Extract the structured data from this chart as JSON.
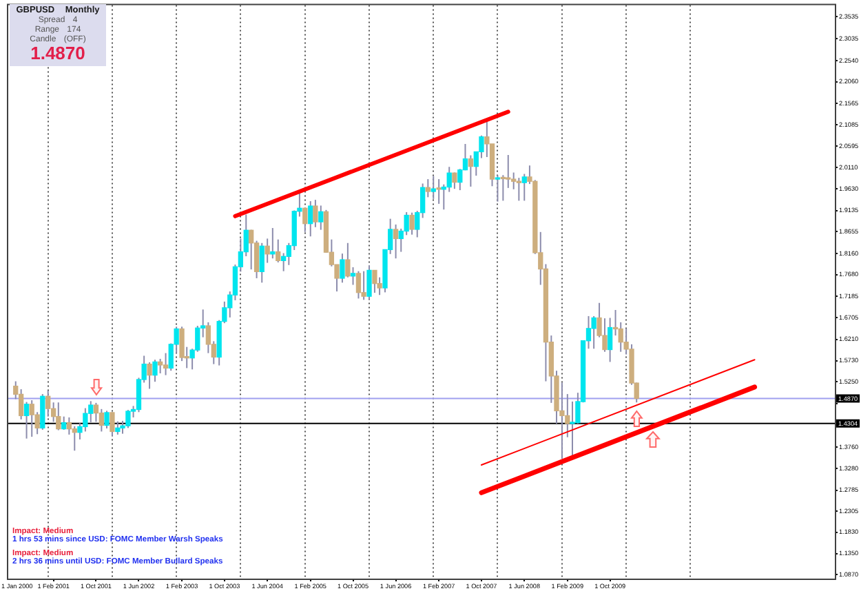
{
  "chart_data": {
    "type": "candlestick",
    "title": "GBPUSD Monthly",
    "x": [
      "2000-07",
      "2000-08",
      "2000-09",
      "2000-10",
      "2000-11",
      "2000-12",
      "2001-01",
      "2001-02",
      "2001-03",
      "2001-04",
      "2001-05",
      "2001-06",
      "2001-07",
      "2001-08",
      "2001-09",
      "2001-10",
      "2001-11",
      "2001-12",
      "2002-01",
      "2002-02",
      "2002-03",
      "2002-04",
      "2002-05",
      "2002-06",
      "2002-07",
      "2002-08",
      "2002-09",
      "2002-10",
      "2002-11",
      "2002-12",
      "2003-01",
      "2003-02",
      "2003-03",
      "2003-04",
      "2003-05",
      "2003-06",
      "2003-07",
      "2003-08",
      "2003-09",
      "2003-10",
      "2003-11",
      "2003-12",
      "2004-01",
      "2004-02",
      "2004-03",
      "2004-04",
      "2004-05",
      "2004-06",
      "2004-07",
      "2004-08",
      "2004-09",
      "2004-10",
      "2004-11",
      "2004-12",
      "2005-01",
      "2005-02",
      "2005-03",
      "2005-04",
      "2005-05",
      "2005-06",
      "2005-07",
      "2005-08",
      "2005-09",
      "2005-10",
      "2005-11",
      "2005-12",
      "2006-01",
      "2006-02",
      "2006-03",
      "2006-04",
      "2006-05",
      "2006-06",
      "2006-07",
      "2006-08",
      "2006-09",
      "2006-10",
      "2006-11",
      "2006-12",
      "2007-01",
      "2007-02",
      "2007-03",
      "2007-04",
      "2007-05",
      "2007-06",
      "2007-07",
      "2007-08",
      "2007-09",
      "2007-10",
      "2007-11",
      "2007-12",
      "2008-01",
      "2008-02",
      "2008-03",
      "2008-04",
      "2008-05",
      "2008-06",
      "2008-07",
      "2008-08",
      "2008-09",
      "2008-10",
      "2008-11",
      "2008-12",
      "2009-01",
      "2009-02",
      "2009-03",
      "2009-04",
      "2009-05",
      "2009-06",
      "2009-07",
      "2009-08",
      "2009-09",
      "2009-10",
      "2009-11",
      "2009-12",
      "2010-01",
      "2010-02",
      "2010-03"
    ],
    "ohlc": [
      [
        1.515,
        1.526,
        1.4855,
        1.4965
      ],
      [
        1.4965,
        1.508,
        1.4395,
        1.448
      ],
      [
        1.448,
        1.479,
        1.396,
        1.474
      ],
      [
        1.474,
        1.483,
        1.4,
        1.45
      ],
      [
        1.45,
        1.456,
        1.406,
        1.42
      ],
      [
        1.42,
        1.497,
        1.416,
        1.492
      ],
      [
        1.492,
        1.505,
        1.446,
        1.464
      ],
      [
        1.464,
        1.478,
        1.434,
        1.446
      ],
      [
        1.446,
        1.478,
        1.415,
        1.418
      ],
      [
        1.418,
        1.446,
        1.416,
        1.432
      ],
      [
        1.432,
        1.444,
        1.405,
        1.418
      ],
      [
        1.418,
        1.424,
        1.3685,
        1.41
      ],
      [
        1.41,
        1.431,
        1.394,
        1.423
      ],
      [
        1.423,
        1.465,
        1.412,
        1.453
      ],
      [
        1.453,
        1.481,
        1.433,
        1.472
      ],
      [
        1.472,
        1.477,
        1.434,
        1.454
      ],
      [
        1.454,
        1.463,
        1.412,
        1.426
      ],
      [
        1.426,
        1.459,
        1.419,
        1.455
      ],
      [
        1.455,
        1.456,
        1.402,
        1.412
      ],
      [
        1.412,
        1.435,
        1.405,
        1.42
      ],
      [
        1.42,
        1.436,
        1.407,
        1.425
      ],
      [
        1.425,
        1.461,
        1.42,
        1.458
      ],
      [
        1.458,
        1.47,
        1.444,
        1.462
      ],
      [
        1.462,
        1.534,
        1.456,
        1.53
      ],
      [
        1.53,
        1.584,
        1.523,
        1.565
      ],
      [
        1.565,
        1.569,
        1.509,
        1.54
      ],
      [
        1.54,
        1.575,
        1.525,
        1.57
      ],
      [
        1.57,
        1.577,
        1.544,
        1.563
      ],
      [
        1.563,
        1.59,
        1.54,
        1.556
      ],
      [
        1.556,
        1.612,
        1.55,
        1.61
      ],
      [
        1.61,
        1.65,
        1.59,
        1.645
      ],
      [
        1.645,
        1.65,
        1.572,
        1.58
      ],
      [
        1.58,
        1.604,
        1.556,
        1.579
      ],
      [
        1.579,
        1.6,
        1.553,
        1.597
      ],
      [
        1.597,
        1.652,
        1.593,
        1.647
      ],
      [
        1.647,
        1.689,
        1.626,
        1.652
      ],
      [
        1.652,
        1.66,
        1.59,
        1.61
      ],
      [
        1.61,
        1.617,
        1.565,
        1.581
      ],
      [
        1.581,
        1.665,
        1.562,
        1.662
      ],
      [
        1.662,
        1.707,
        1.658,
        1.693
      ],
      [
        1.693,
        1.73,
        1.671,
        1.722
      ],
      [
        1.722,
        1.791,
        1.71,
        1.786
      ],
      [
        1.786,
        1.85,
        1.775,
        1.82
      ],
      [
        1.82,
        1.9045,
        1.81,
        1.869
      ],
      [
        1.869,
        1.87,
        1.78,
        1.84
      ],
      [
        1.84,
        1.845,
        1.76,
        1.775
      ],
      [
        1.775,
        1.84,
        1.75,
        1.833
      ],
      [
        1.833,
        1.85,
        1.795,
        1.815
      ],
      [
        1.815,
        1.874,
        1.805,
        1.82
      ],
      [
        1.82,
        1.848,
        1.796,
        1.8
      ],
      [
        1.8,
        1.817,
        1.776,
        1.8095
      ],
      [
        1.8095,
        1.84,
        1.79,
        1.834
      ],
      [
        1.834,
        1.914,
        1.824,
        1.912
      ],
      [
        1.912,
        1.955,
        1.9,
        1.919
      ],
      [
        1.919,
        1.92,
        1.865,
        1.884
      ],
      [
        1.884,
        1.935,
        1.855,
        1.924
      ],
      [
        1.924,
        1.938,
        1.876,
        1.888
      ],
      [
        1.888,
        1.925,
        1.87,
        1.911
      ],
      [
        1.911,
        1.915,
        1.818,
        1.819
      ],
      [
        1.819,
        1.848,
        1.787,
        1.791
      ],
      [
        1.791,
        1.791,
        1.73,
        1.76
      ],
      [
        1.76,
        1.816,
        1.75,
        1.802
      ],
      [
        1.802,
        1.84,
        1.762,
        1.765
      ],
      [
        1.765,
        1.785,
        1.745,
        1.771
      ],
      [
        1.771,
        1.776,
        1.714,
        1.7275
      ],
      [
        1.7275,
        1.776,
        1.711,
        1.719
      ],
      [
        1.719,
        1.789,
        1.712,
        1.778
      ],
      [
        1.778,
        1.778,
        1.727,
        1.748
      ],
      [
        1.748,
        1.762,
        1.722,
        1.738
      ],
      [
        1.738,
        1.825,
        1.728,
        1.825
      ],
      [
        1.825,
        1.895,
        1.815,
        1.871
      ],
      [
        1.871,
        1.882,
        1.805,
        1.85
      ],
      [
        1.85,
        1.8725,
        1.82,
        1.867
      ],
      [
        1.867,
        1.91,
        1.858,
        1.903
      ],
      [
        1.903,
        1.909,
        1.859,
        1.871
      ],
      [
        1.871,
        1.913,
        1.853,
        1.909
      ],
      [
        1.909,
        1.975,
        1.897,
        1.966
      ],
      [
        1.966,
        1.985,
        1.944,
        1.957
      ],
      [
        1.957,
        1.992,
        1.94,
        1.963
      ],
      [
        1.963,
        1.985,
        1.929,
        1.962
      ],
      [
        1.962,
        1.973,
        1.916,
        1.967
      ],
      [
        1.967,
        2.013,
        1.956,
        1.999
      ],
      [
        1.999,
        2.0,
        1.963,
        1.978
      ],
      [
        1.978,
        2.008,
        1.96,
        2.006
      ],
      [
        2.006,
        2.065,
        2.005,
        2.031
      ],
      [
        2.031,
        2.039,
        1.968,
        2.014
      ],
      [
        2.014,
        2.047,
        1.993,
        2.047
      ],
      [
        2.047,
        2.084,
        2.033,
        2.081
      ],
      [
        2.081,
        2.116,
        2.035,
        2.065
      ],
      [
        2.065,
        2.065,
        1.969,
        1.985
      ],
      [
        1.985,
        1.994,
        1.934,
        1.988
      ],
      [
        1.988,
        1.994,
        1.936,
        1.986
      ],
      [
        1.986,
        2.04,
        1.965,
        1.985
      ],
      [
        1.985,
        2.0,
        1.962,
        1.98
      ],
      [
        1.98,
        1.988,
        1.936,
        1.977
      ],
      [
        1.977,
        1.997,
        1.936,
        1.99
      ],
      [
        1.99,
        2.016,
        1.974,
        1.98
      ],
      [
        1.98,
        1.983,
        1.815,
        1.818
      ],
      [
        1.818,
        1.865,
        1.745,
        1.781
      ],
      [
        1.781,
        1.792,
        1.526,
        1.615
      ],
      [
        1.615,
        1.63,
        1.477,
        1.538
      ],
      [
        1.538,
        1.55,
        1.43,
        1.459
      ],
      [
        1.459,
        1.523,
        1.35,
        1.448
      ],
      [
        1.448,
        1.497,
        1.399,
        1.43
      ],
      [
        1.43,
        1.48,
        1.35,
        1.432
      ],
      [
        1.432,
        1.5,
        1.43,
        1.48
      ],
      [
        1.48,
        1.618,
        1.478,
        1.618
      ],
      [
        1.618,
        1.674,
        1.6,
        1.646
      ],
      [
        1.646,
        1.674,
        1.6,
        1.67
      ],
      [
        1.67,
        1.704,
        1.626,
        1.63
      ],
      [
        1.63,
        1.669,
        1.593,
        1.598
      ],
      [
        1.598,
        1.67,
        1.57,
        1.648
      ],
      [
        1.648,
        1.688,
        1.63,
        1.645
      ],
      [
        1.645,
        1.66,
        1.593,
        1.615
      ],
      [
        1.615,
        1.646,
        1.587,
        1.599
      ],
      [
        1.599,
        1.61,
        1.518,
        1.522
      ],
      [
        1.522,
        1.523,
        1.478,
        1.487
      ]
    ],
    "colors": [
      "#cdae7e",
      "#cdae7e",
      "#00e5ee",
      "#cdae7e",
      "#cdae7e",
      "#00e5ee",
      "#cdae7e",
      "#cdae7e",
      "#cdae7e",
      "#00e5ee",
      "#cdae7e",
      "#cdae7e",
      "#00e5ee",
      "#00e5ee",
      "#00e5ee",
      "#cdae7e",
      "#cdae7e",
      "#00e5ee",
      "#cdae7e",
      "#00e5ee",
      "#00e5ee",
      "#00e5ee",
      "#00e5ee",
      "#00e5ee",
      "#00e5ee",
      "#cdae7e",
      "#00e5ee",
      "#cdae7e",
      "#cdae7e",
      "#00e5ee",
      "#00e5ee",
      "#cdae7e",
      "#cdae7e",
      "#00e5ee",
      "#00e5ee",
      "#00e5ee",
      "#cdae7e",
      "#cdae7e",
      "#00e5ee",
      "#00e5ee",
      "#00e5ee",
      "#00e5ee",
      "#00e5ee",
      "#00e5ee",
      "#cdae7e",
      "#cdae7e",
      "#00e5ee",
      "#cdae7e",
      "#00e5ee",
      "#cdae7e",
      "#00e5ee",
      "#00e5ee",
      "#00e5ee",
      "#00e5ee",
      "#cdae7e",
      "#00e5ee",
      "#cdae7e",
      "#00e5ee",
      "#cdae7e",
      "#cdae7e",
      "#cdae7e",
      "#00e5ee",
      "#cdae7e",
      "#00e5ee",
      "#cdae7e",
      "#cdae7e",
      "#00e5ee",
      "#cdae7e",
      "#cdae7e",
      "#00e5ee",
      "#00e5ee",
      "#cdae7e",
      "#00e5ee",
      "#00e5ee",
      "#cdae7e",
      "#00e5ee",
      "#00e5ee",
      "#cdae7e",
      "#00e5ee",
      "#cdae7e",
      "#00e5ee",
      "#00e5ee",
      "#cdae7e",
      "#00e5ee",
      "#00e5ee",
      "#cdae7e",
      "#00e5ee",
      "#00e5ee",
      "#cdae7e",
      "#cdae7e",
      "#00e5ee",
      "#cdae7e",
      "#cdae7e",
      "#cdae7e",
      "#cdae7e",
      "#00e5ee",
      "#cdae7e",
      "#cdae7e",
      "#cdae7e",
      "#cdae7e",
      "#cdae7e",
      "#cdae7e",
      "#cdae7e",
      "#cdae7e",
      "#00e5ee",
      "#00e5ee",
      "#00e5ee",
      "#00e5ee",
      "#00e5ee",
      "#cdae7e",
      "#cdae7e",
      "#00e5ee",
      "#cdae7e",
      "#cdae7e",
      "#cdae7e",
      "#cdae7e",
      "#cdae7e"
    ],
    "series": [
      {
        "type": "line",
        "x": [
          "2003-12",
          "2008-03"
        ],
        "values": [
          1.901,
          2.138
        ],
        "color": "#ff0000"
      },
      {
        "type": "line",
        "x": [
          "2007-10",
          "2012-01"
        ],
        "values": [
          1.336,
          1.575
        ],
        "color": "#ff0000"
      },
      {
        "type": "line",
        "x": [
          "2007-10",
          "2012-01"
        ],
        "values": [
          1.273,
          1.513
        ],
        "color": "#ff0000"
      }
    ],
    "xlim": [
      "2000-05-20",
      "2013-04"
    ],
    "xticks": [
      {
        "value": "2001-01",
        "label": null
      },
      {
        "value": "2001-02",
        "label": "1 Feb 2001"
      },
      {
        "value": "2001-10",
        "label": "1 Oct 2001"
      },
      {
        "value": "2002-01",
        "label": null
      },
      {
        "value": "2002-06",
        "label": "1 Jun 2002"
      },
      {
        "value": "2003-01",
        "label": null
      },
      {
        "value": "2003-02",
        "label": "1 Feb 2003"
      },
      {
        "value": "2003-10",
        "label": "1 Oct 2003"
      },
      {
        "value": "2004-01",
        "label": null
      },
      {
        "value": "2004-06",
        "label": "1 Jun 2004"
      },
      {
        "value": "2005-01",
        "label": null
      },
      {
        "value": "2005-02",
        "label": "1 Feb 2005"
      },
      {
        "value": "2005-10",
        "label": "1 Oct 2005"
      },
      {
        "value": "2006-01",
        "label": null
      },
      {
        "value": "2006-06",
        "label": "1 Jun 2006"
      },
      {
        "value": "2007-01",
        "label": null
      },
      {
        "value": "2007-02",
        "label": "1 Feb 2007"
      },
      {
        "value": "2007-10",
        "label": "1 Oct 2007"
      },
      {
        "value": "2008-01",
        "label": null
      },
      {
        "value": "2008-06",
        "label": "1 Jun 2008"
      },
      {
        "value": "2009-01",
        "label": null
      },
      {
        "value": "2009-02",
        "label": "1 Feb 2009"
      },
      {
        "value": "2009-10",
        "label": "1 Oct 2009"
      },
      {
        "value": "2010-01",
        "label": null
      },
      {
        "value": "2011-01",
        "label": null
      }
    ],
    "ylim": [
      1.078,
      2.38
    ],
    "yticks": [
      {
        "value": 2.3535,
        "label": "2.3535"
      },
      {
        "value": 2.3035,
        "label": "2.3035"
      },
      {
        "value": 2.254,
        "label": "2.2540"
      },
      {
        "value": 2.206,
        "label": "2.2060"
      },
      {
        "value": 2.1565,
        "label": "2.1565"
      },
      {
        "value": 2.1085,
        "label": "2.1085"
      },
      {
        "value": 2.0595,
        "label": "2.0595"
      },
      {
        "value": 2.011,
        "label": "2.0110"
      },
      {
        "value": 1.963,
        "label": "1.9630"
      },
      {
        "value": 1.9135,
        "label": "1.9135"
      },
      {
        "value": 1.8655,
        "label": "1.8655"
      },
      {
        "value": 1.816,
        "label": "1.8160"
      },
      {
        "value": 1.768,
        "label": "1.7680"
      },
      {
        "value": 1.7185,
        "label": "1.7185"
      },
      {
        "value": 1.6705,
        "label": "1.6705"
      },
      {
        "value": 1.621,
        "label": "1.6210"
      },
      {
        "value": 1.573,
        "label": "1.5730"
      },
      {
        "value": 1.525,
        "label": "1.5250"
      },
      {
        "value": 1.4755,
        "label": null
      },
      {
        "value": 1.376,
        "label": "1.3760"
      },
      {
        "value": 1.328,
        "label": "1.3280"
      },
      {
        "value": 1.2785,
        "label": "1.2785"
      },
      {
        "value": 1.2305,
        "label": "1.2305"
      },
      {
        "value": 1.183,
        "label": "1.1830"
      },
      {
        "value": 1.135,
        "label": "1.1350"
      },
      {
        "value": 1.087,
        "label": "1.0870"
      }
    ],
    "grid": "x",
    "ref_lines": [
      {
        "axis": "y",
        "value": 1.487,
        "label": "1.4870",
        "color": "#a0a0f0"
      },
      {
        "axis": "y",
        "value": 1.4304,
        "label": "1.4304",
        "color": "#000000"
      }
    ],
    "annotations": [
      "Spread 4",
      "Range 174",
      "Candle (OFF)",
      "1.4870",
      "Impact: Medium",
      "1 hrs 53 mins since USD: FOMC Member Warsh Speaks",
      "Impact: Medium",
      "2 hrs 36 mins until USD: FOMC Member Bullard Speaks",
      "1 Jan 2000"
    ]
  }
}
